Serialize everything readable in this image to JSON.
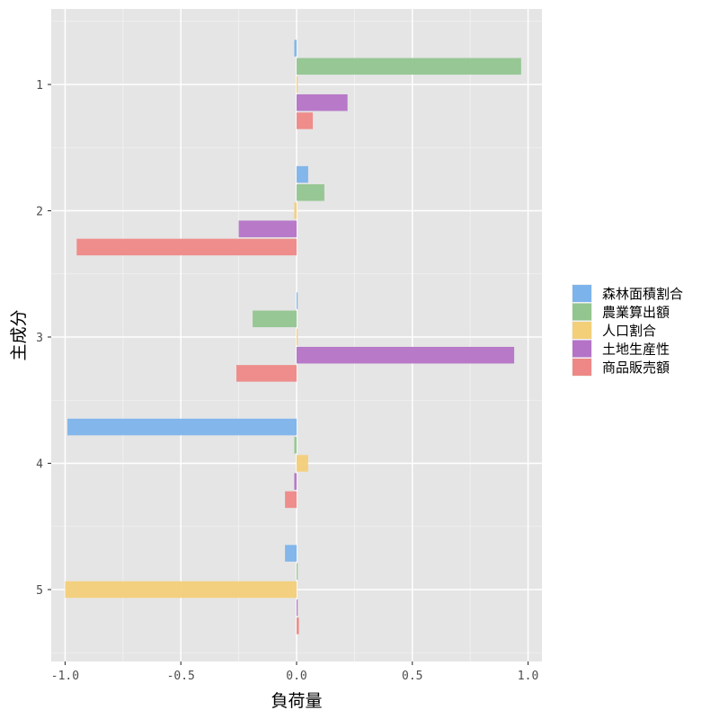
{
  "chart_data": {
    "type": "bar",
    "orientation": "horizontal",
    "xlabel": "負荷量",
    "ylabel": "主成分",
    "xlim": [
      -1.06,
      1.06
    ],
    "x_ticks": [
      "-1.0",
      "-0.5",
      "0.0",
      "0.5",
      "1.0"
    ],
    "x_tick_values": [
      -1.0,
      -0.5,
      0.0,
      0.5,
      1.0
    ],
    "categories": [
      "1",
      "2",
      "3",
      "4",
      "5"
    ],
    "grid": true,
    "legend_position": "right",
    "series": [
      {
        "name": "森林面積割合",
        "color": "#7DB3EB",
        "values": [
          -0.01,
          0.05,
          0.0,
          -0.99,
          -0.05
        ]
      },
      {
        "name": "農業算出額",
        "color": "#92C58F",
        "values": [
          0.97,
          0.12,
          -0.19,
          -0.01,
          0.0
        ]
      },
      {
        "name": "人口割合",
        "color": "#F3CF79",
        "values": [
          0.0,
          -0.01,
          0.0,
          0.05,
          -1.0
        ]
      },
      {
        "name": "土地生産性",
        "color": "#B473C6",
        "values": [
          0.22,
          -0.25,
          0.94,
          -0.01,
          0.0
        ]
      },
      {
        "name": "商品販売額",
        "color": "#EE8886",
        "values": [
          0.07,
          -0.95,
          -0.26,
          -0.05,
          0.01
        ]
      }
    ]
  }
}
